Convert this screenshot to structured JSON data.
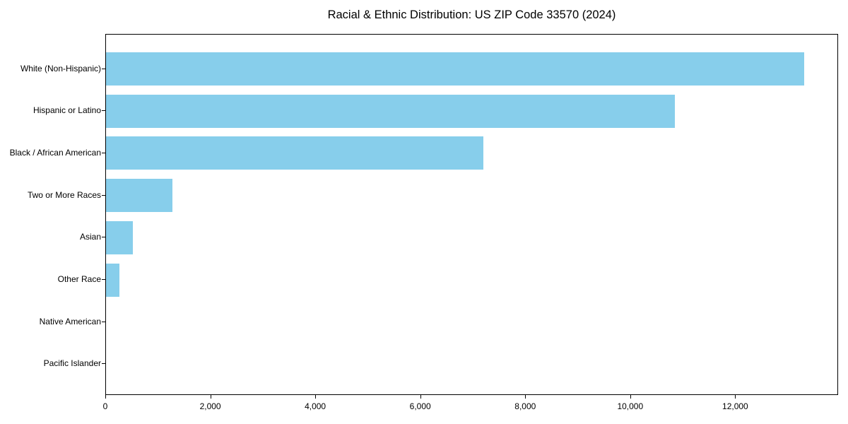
{
  "page": {
    "background_color": "#ffffff"
  },
  "chart_data": {
    "type": "bar",
    "orientation": "horizontal",
    "title": "Racial & Ethnic Distribution: US ZIP Code 33570 (2024)",
    "categories": [
      "White (Non-Hispanic)",
      "Hispanic or Latino",
      "Black / African American",
      "Two or More Races",
      "Asian",
      "Other Race",
      "Native American",
      "Pacific Islander"
    ],
    "values": [
      13300,
      10840,
      7190,
      1270,
      510,
      250,
      0,
      0
    ],
    "xlabel": "",
    "ylabel": "",
    "xlim": [
      0,
      13960
    ],
    "xticks": [
      0,
      2000,
      4000,
      6000,
      8000,
      10000,
      12000
    ],
    "xtick_labels": [
      "0",
      "2,000",
      "4,000",
      "6,000",
      "8,000",
      "10,000",
      "12,000"
    ],
    "grid": false,
    "legend": false,
    "bar_color": "#87CEEB",
    "axis_color": "#000000",
    "text_color": "#000000"
  }
}
